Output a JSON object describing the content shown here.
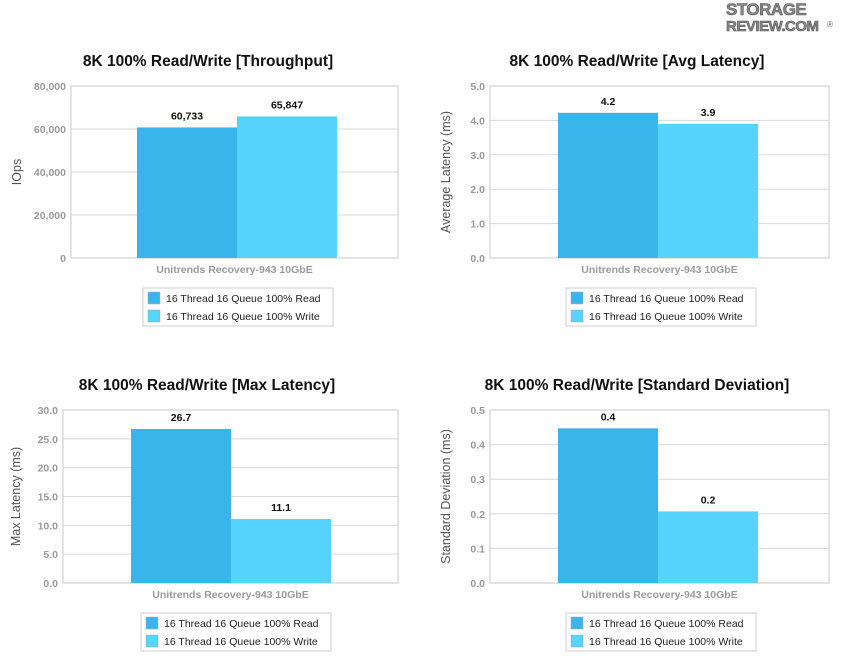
{
  "logo": {
    "line1": "STORAGE",
    "line2": "REVIEW.COM",
    "mark": "®"
  },
  "colors": {
    "read": "#3ab5ec",
    "write": "#57d4fd",
    "grid": "#d9d9d9",
    "frame": "#c8c8c8"
  },
  "chart_data": [
    {
      "type": "bar",
      "title": "8K 100% Read/Write [Throughput]",
      "ylabel": "IOps",
      "categories": [
        "Unitrends Recovery-943 10GbE"
      ],
      "ylim": [
        0,
        80000
      ],
      "yticks": [
        0,
        20000,
        40000,
        60000,
        80000
      ],
      "ytick_labels": [
        "0",
        "20,000",
        "40,000",
        "60,000",
        "80,000"
      ],
      "series": [
        {
          "name": "16 Thread 16 Queue 100% Read",
          "values": [
            60733
          ],
          "labels": [
            "60,733"
          ]
        },
        {
          "name": "16 Thread 16 Queue 100% Write",
          "values": [
            65847
          ],
          "labels": [
            "65,847"
          ]
        }
      ],
      "grid": true,
      "legend": "bottom"
    },
    {
      "type": "bar",
      "title": "8K 100% Read/Write [Avg Latency]",
      "ylabel": "Average Latency (ms)",
      "categories": [
        "Unitrends Recovery-943 10GbE"
      ],
      "ylim": [
        0,
        5
      ],
      "yticks": [
        0,
        1,
        2,
        3,
        4,
        5
      ],
      "ytick_labels": [
        "0.0",
        "1.0",
        "2.0",
        "3.0",
        "4.0",
        "5.0"
      ],
      "series": [
        {
          "name": "16 Thread 16 Queue 100% Read",
          "values": [
            4.22
          ],
          "labels": [
            "4.2"
          ]
        },
        {
          "name": "16 Thread 16 Queue 100% Write",
          "values": [
            3.9
          ],
          "labels": [
            "3.9"
          ]
        }
      ],
      "grid": true,
      "legend": "bottom"
    },
    {
      "type": "bar",
      "title": "8K 100% Read/Write [Max Latency]",
      "ylabel": "Max Latency (ms)",
      "categories": [
        "Unitrends Recovery-943 10GbE"
      ],
      "ylim": [
        0,
        30
      ],
      "yticks": [
        0,
        5,
        10,
        15,
        20,
        25,
        30
      ],
      "ytick_labels": [
        "0.0",
        "5.0",
        "10.0",
        "15.0",
        "20.0",
        "25.0",
        "30.0"
      ],
      "series": [
        {
          "name": "16 Thread 16 Queue 100% Read",
          "values": [
            26.7
          ],
          "labels": [
            "26.7"
          ]
        },
        {
          "name": "16 Thread 16 Queue 100% Write",
          "values": [
            11.1
          ],
          "labels": [
            "11.1"
          ]
        }
      ],
      "grid": true,
      "legend": "bottom"
    },
    {
      "type": "bar",
      "title": "8K 100% Read/Write [Standard Deviation]",
      "ylabel": "Standard Deviation (ms)",
      "categories": [
        "Unitrends Recovery-943 10GbE"
      ],
      "ylim": [
        0,
        0.5
      ],
      "yticks": [
        0,
        0.1,
        0.2,
        0.3,
        0.4,
        0.5
      ],
      "ytick_labels": [
        "0.0",
        "0.1",
        "0.2",
        "0.3",
        "0.4",
        "0.5"
      ],
      "series": [
        {
          "name": "16 Thread 16 Queue 100% Read",
          "values": [
            0.447
          ],
          "labels": [
            "0.4"
          ]
        },
        {
          "name": "16 Thread 16 Queue 100% Write",
          "values": [
            0.207
          ],
          "labels": [
            "0.2"
          ]
        }
      ],
      "grid": true,
      "legend": "bottom"
    }
  ]
}
